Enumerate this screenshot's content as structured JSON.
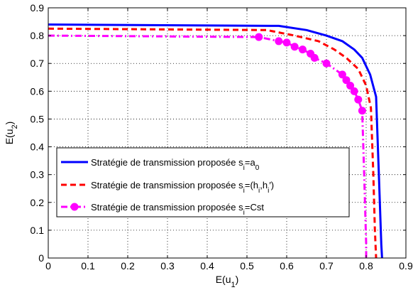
{
  "chart_data": {
    "type": "line",
    "xlabel": "E(u1)",
    "ylabel": "E(u2)",
    "xlim": [
      0,
      0.9
    ],
    "ylim": [
      0,
      0.9
    ],
    "xticks": [
      "0",
      "0.1",
      "0.2",
      "0.3",
      "0.4",
      "0.5",
      "0.6",
      "0.7",
      "0.8",
      "0.9"
    ],
    "yticks": [
      "0",
      "0.1",
      "0.2",
      "0.3",
      "0.4",
      "0.5",
      "0.6",
      "0.7",
      "0.8",
      "0.9"
    ],
    "grid": true,
    "legend_position": "bottom-left",
    "series": [
      {
        "name": "Stratégie de transmission proposée si=a0",
        "color": "#0000ff",
        "style": "solid",
        "marker": "none",
        "x": [
          0,
          0.58,
          0.65,
          0.7,
          0.74,
          0.77,
          0.79,
          0.81,
          0.825,
          0.832,
          0.838,
          0.84
        ],
        "y": [
          0.84,
          0.835,
          0.82,
          0.8,
          0.78,
          0.75,
          0.72,
          0.66,
          0.58,
          0.3,
          0.05,
          0
        ]
      },
      {
        "name": "Stratégie de transmission proposée si=(hi,hi′)",
        "color": "#ff0000",
        "style": "dashed",
        "marker": "none",
        "x": [
          0,
          0.55,
          0.62,
          0.68,
          0.72,
          0.75,
          0.78,
          0.8,
          0.812,
          0.818,
          0.822,
          0.825
        ],
        "y": [
          0.825,
          0.82,
          0.8,
          0.78,
          0.75,
          0.72,
          0.68,
          0.62,
          0.54,
          0.3,
          0.1,
          0
        ]
      },
      {
        "name": "Stratégie de transmission proposée si=Cst",
        "color": "#ff00ff",
        "style": "dashdot",
        "marker": "circle",
        "x": [
          0,
          0.53,
          0.58,
          0.6,
          0.62,
          0.64,
          0.66,
          0.67,
          0.7,
          0.74,
          0.75,
          0.76,
          0.77,
          0.78,
          0.79,
          0.795,
          0.8,
          0.8
        ],
        "y": [
          0.8,
          0.795,
          0.78,
          0.775,
          0.76,
          0.75,
          0.735,
          0.72,
          0.7,
          0.66,
          0.64,
          0.62,
          0.6,
          0.57,
          0.53,
          0.3,
          0.05,
          0
        ]
      }
    ]
  }
}
